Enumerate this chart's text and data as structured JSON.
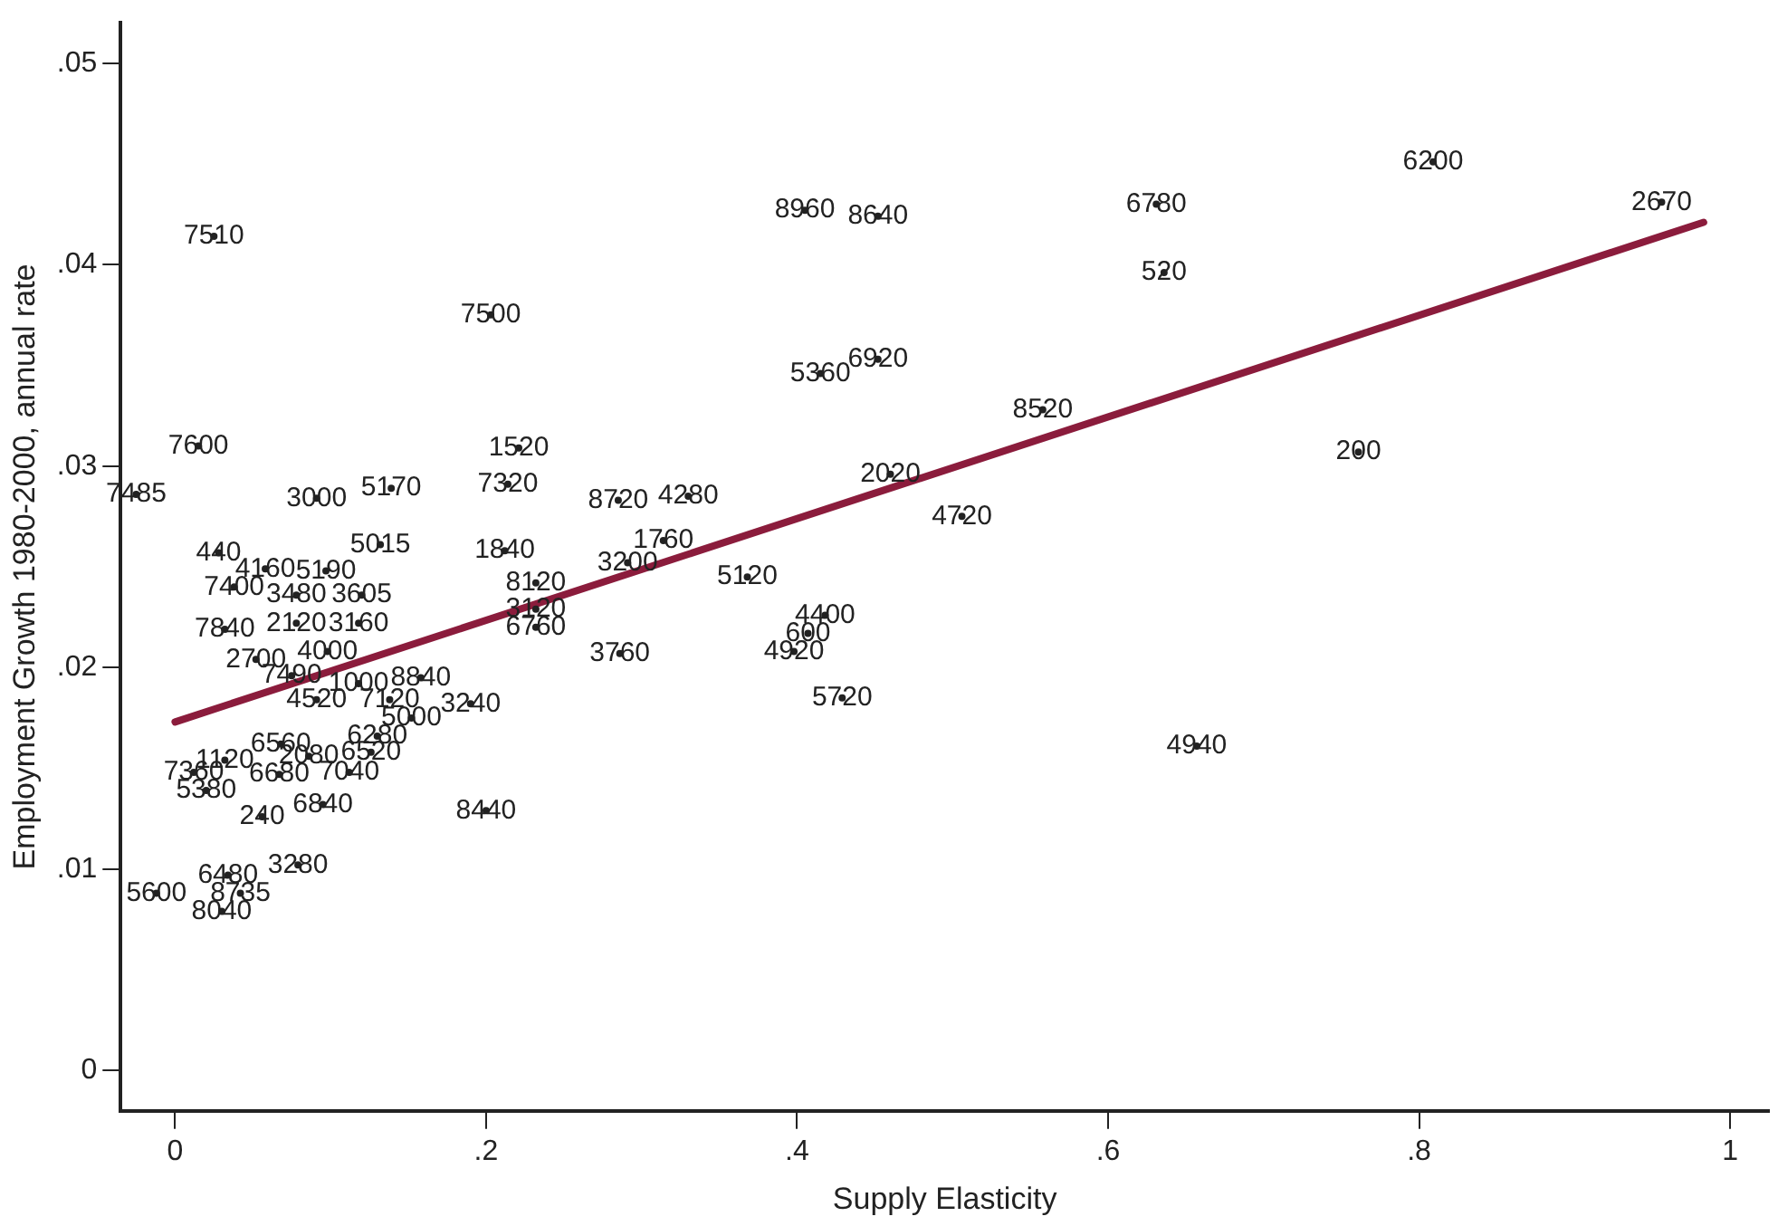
{
  "chart_data": {
    "type": "scatter",
    "xlabel": "Supply Elasticity",
    "ylabel": "Employment Growth 1980-2000, annual rate",
    "xlim": [
      -0.035,
      1.025
    ],
    "ylim": [
      -0.002,
      0.052
    ],
    "xticks": [
      0,
      {
        "value": 0.2,
        "label": ".2"
      },
      {
        "value": 0.4,
        "label": ".4"
      },
      {
        "value": 0.6,
        "label": ".6"
      },
      {
        "value": 0.8,
        "label": ".8"
      },
      1
    ],
    "yticks": [
      0,
      {
        "value": 0.01,
        "label": ".01"
      },
      {
        "value": 0.02,
        "label": ".02"
      },
      {
        "value": 0.03,
        "label": ".03"
      },
      {
        "value": 0.04,
        "label": ".04"
      },
      {
        "value": 0.05,
        "label": ".05"
      }
    ],
    "grid": false,
    "legend": false,
    "line_style": "solid",
    "series": [
      {
        "type": "scatter",
        "marker": "circle",
        "color": "#222222",
        "x": [
          0.025,
          0.015,
          -0.025,
          0.091,
          0.139,
          0.221,
          0.214,
          0.285,
          0.33,
          0.314,
          0.291,
          0.368,
          0.405,
          0.452,
          0.631,
          0.809,
          0.956,
          0.636,
          0.415,
          0.452,
          0.558,
          0.46,
          0.761,
          0.506,
          0.418,
          0.407,
          0.398,
          0.429,
          0.657,
          0.203,
          0.132,
          0.212,
          0.232,
          0.232,
          0.232,
          0.286,
          0.028,
          0.058,
          0.038,
          0.097,
          0.078,
          0.12,
          0.032,
          0.078,
          0.118,
          0.052,
          0.098,
          0.075,
          0.091,
          0.118,
          0.158,
          0.138,
          0.152,
          0.19,
          0.13,
          0.126,
          0.012,
          0.032,
          0.068,
          0.086,
          0.067,
          0.112,
          0.02,
          0.056,
          0.095,
          0.2,
          0.079,
          0.034,
          -0.012,
          0.042,
          0.03
        ],
        "values": [
          0.0414,
          0.031,
          0.0286,
          0.0284,
          0.0289,
          0.0309,
          0.0291,
          0.0283,
          0.0285,
          0.0263,
          0.0252,
          0.0245,
          0.0427,
          0.0424,
          0.043,
          0.0451,
          0.0431,
          0.0396,
          0.0346,
          0.0353,
          0.0328,
          0.0296,
          0.0307,
          0.0275,
          0.0226,
          0.0217,
          0.0208,
          0.0185,
          0.0161,
          0.0375,
          0.0261,
          0.0258,
          0.0242,
          0.0229,
          0.022,
          0.0207,
          0.0257,
          0.0249,
          0.024,
          0.0248,
          0.0236,
          0.0236,
          0.0219,
          0.0222,
          0.0222,
          0.0204,
          0.0208,
          0.0196,
          0.0184,
          0.0192,
          0.0195,
          0.0184,
          0.0175,
          0.0182,
          0.0166,
          0.0158,
          0.0148,
          0.0154,
          0.0162,
          0.0156,
          0.0147,
          0.0148,
          0.0139,
          0.0126,
          0.0132,
          0.0129,
          0.0102,
          0.0097,
          0.0088,
          0.0088,
          0.0079
        ]
      },
      {
        "type": "line",
        "marker": "none",
        "color": "#8b1c3c",
        "x": [
          0,
          0.983
        ],
        "values": [
          0.0173,
          0.0421
        ]
      }
    ],
    "annotations": [
      {
        "text": "7510",
        "x": 0.025,
        "y": 0.0414
      },
      {
        "text": "7600",
        "x": 0.015,
        "y": 0.031
      },
      {
        "text": "7485",
        "x": -0.025,
        "y": 0.0286
      },
      {
        "text": "3000",
        "x": 0.091,
        "y": 0.0284
      },
      {
        "text": "5170",
        "x": 0.139,
        "y": 0.0289
      },
      {
        "text": "1520",
        "x": 0.221,
        "y": 0.0309
      },
      {
        "text": "7320",
        "x": 0.214,
        "y": 0.0291
      },
      {
        "text": "8720",
        "x": 0.285,
        "y": 0.0283
      },
      {
        "text": "4280",
        "x": 0.33,
        "y": 0.0285
      },
      {
        "text": "1760",
        "x": 0.314,
        "y": 0.0263
      },
      {
        "text": "3200",
        "x": 0.291,
        "y": 0.0252
      },
      {
        "text": "5120",
        "x": 0.368,
        "y": 0.0245
      },
      {
        "text": "8960",
        "x": 0.405,
        "y": 0.0427
      },
      {
        "text": "8640",
        "x": 0.452,
        "y": 0.0424
      },
      {
        "text": "6780",
        "x": 0.631,
        "y": 0.043
      },
      {
        "text": "6200",
        "x": 0.809,
        "y": 0.0451
      },
      {
        "text": "2670",
        "x": 0.956,
        "y": 0.0431
      },
      {
        "text": "520",
        "x": 0.636,
        "y": 0.0396
      },
      {
        "text": "5360",
        "x": 0.415,
        "y": 0.0346
      },
      {
        "text": "6920",
        "x": 0.452,
        "y": 0.0353
      },
      {
        "text": "8520",
        "x": 0.558,
        "y": 0.0328
      },
      {
        "text": "2020",
        "x": 0.46,
        "y": 0.0296
      },
      {
        "text": "200",
        "x": 0.761,
        "y": 0.0307
      },
      {
        "text": "4720",
        "x": 0.506,
        "y": 0.0275
      },
      {
        "text": "4400",
        "x": 0.418,
        "y": 0.0226
      },
      {
        "text": "600",
        "x": 0.407,
        "y": 0.0217
      },
      {
        "text": "4920",
        "x": 0.398,
        "y": 0.0208
      },
      {
        "text": "5720",
        "x": 0.429,
        "y": 0.0185
      },
      {
        "text": "4940",
        "x": 0.657,
        "y": 0.0161
      },
      {
        "text": "7500",
        "x": 0.203,
        "y": 0.0375
      },
      {
        "text": "5015",
        "x": 0.132,
        "y": 0.0261
      },
      {
        "text": "1840",
        "x": 0.212,
        "y": 0.0258
      },
      {
        "text": "8120",
        "x": 0.232,
        "y": 0.0242
      },
      {
        "text": "3120",
        "x": 0.232,
        "y": 0.0229
      },
      {
        "text": "6760",
        "x": 0.232,
        "y": 0.022
      },
      {
        "text": "3760",
        "x": 0.286,
        "y": 0.0207
      },
      {
        "text": "440",
        "x": 0.028,
        "y": 0.0257
      },
      {
        "text": "4160",
        "x": 0.058,
        "y": 0.0249
      },
      {
        "text": "7400",
        "x": 0.038,
        "y": 0.024
      },
      {
        "text": "5190",
        "x": 0.097,
        "y": 0.0248
      },
      {
        "text": "3480",
        "x": 0.078,
        "y": 0.0236
      },
      {
        "text": "3605",
        "x": 0.12,
        "y": 0.0236
      },
      {
        "text": "7840",
        "x": 0.032,
        "y": 0.0219
      },
      {
        "text": "2120",
        "x": 0.078,
        "y": 0.0222
      },
      {
        "text": "3160",
        "x": 0.118,
        "y": 0.0222
      },
      {
        "text": "2700",
        "x": 0.052,
        "y": 0.0204
      },
      {
        "text": "4000",
        "x": 0.098,
        "y": 0.0208
      },
      {
        "text": "7490",
        "x": 0.075,
        "y": 0.0196
      },
      {
        "text": "4520",
        "x": 0.091,
        "y": 0.0184
      },
      {
        "text": "1000",
        "x": 0.118,
        "y": 0.0192
      },
      {
        "text": "8840",
        "x": 0.158,
        "y": 0.0195
      },
      {
        "text": "7120",
        "x": 0.138,
        "y": 0.0184
      },
      {
        "text": "5000",
        "x": 0.152,
        "y": 0.0175
      },
      {
        "text": "3240",
        "x": 0.19,
        "y": 0.0182
      },
      {
        "text": "6280",
        "x": 0.13,
        "y": 0.0166
      },
      {
        "text": "6520",
        "x": 0.126,
        "y": 0.0158
      },
      {
        "text": "7360",
        "x": 0.012,
        "y": 0.0148
      },
      {
        "text": "1120",
        "x": 0.032,
        "y": 0.0154
      },
      {
        "text": "6560",
        "x": 0.068,
        "y": 0.0162
      },
      {
        "text": "2080",
        "x": 0.086,
        "y": 0.0156
      },
      {
        "text": "6680",
        "x": 0.067,
        "y": 0.0147
      },
      {
        "text": "7040",
        "x": 0.112,
        "y": 0.0148
      },
      {
        "text": "5380",
        "x": 0.02,
        "y": 0.0139
      },
      {
        "text": "240",
        "x": 0.056,
        "y": 0.0126
      },
      {
        "text": "6840",
        "x": 0.095,
        "y": 0.0132
      },
      {
        "text": "8440",
        "x": 0.2,
        "y": 0.0129
      },
      {
        "text": "3280",
        "x": 0.079,
        "y": 0.0102
      },
      {
        "text": "6480",
        "x": 0.034,
        "y": 0.0097
      },
      {
        "text": "5600",
        "x": -0.012,
        "y": 0.0088
      },
      {
        "text": "8735",
        "x": 0.042,
        "y": 0.0088
      },
      {
        "text": "8040",
        "x": 0.03,
        "y": 0.0079
      }
    ]
  }
}
